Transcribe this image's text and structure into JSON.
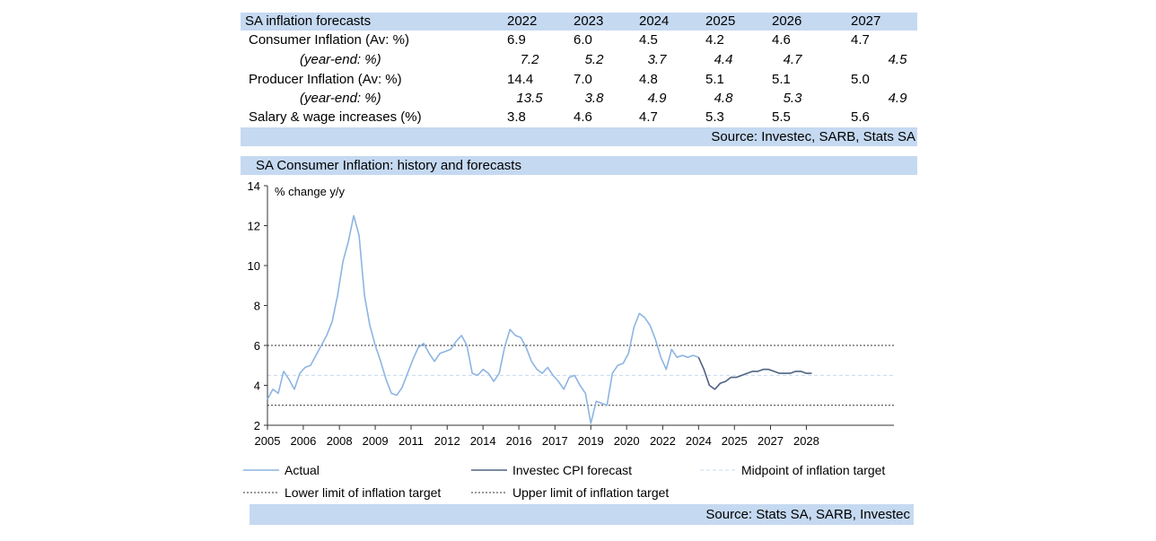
{
  "table": {
    "title": "SA inflation forecasts",
    "years": [
      "2022",
      "2023",
      "2024",
      "2025",
      "2026",
      "2027"
    ],
    "rows": [
      {
        "label": "Consumer Inflation (Av: %)",
        "italic": false,
        "values": [
          "6.9",
          "6.0",
          "4.5",
          "4.2",
          "4.6",
          "4.7"
        ]
      },
      {
        "label": "(year-end: %)",
        "italic": true,
        "values": [
          "7.2",
          "5.2",
          "3.7",
          "4.4",
          "4.7",
          "4.5"
        ]
      },
      {
        "label": "Producer Inflation (Av: %)",
        "italic": false,
        "values": [
          "14.4",
          "7.0",
          "4.8",
          "5.1",
          "5.1",
          "5.0"
        ]
      },
      {
        "label": "(year-end: %)",
        "italic": true,
        "values": [
          "13.5",
          "3.8",
          "4.9",
          "4.8",
          "5.3",
          "4.9"
        ]
      },
      {
        "label": "Salary & wage increases (%)",
        "italic": false,
        "values": [
          "3.8",
          "4.6",
          "4.7",
          "5.3",
          "5.5",
          "5.6"
        ]
      }
    ],
    "source": "Source: Investec, SARB, Stats SA"
  },
  "chart_data": {
    "type": "line",
    "title": "SA Consumer Inflation: history and forecasts",
    "ylabel": "% change y/y",
    "ylim": [
      2,
      14
    ],
    "yticks": [
      "2",
      "4",
      "6",
      "8",
      "10",
      "12",
      "14"
    ],
    "xlim": [
      2005.0,
      2028.25
    ],
    "xticks": [
      {
        "label": "2005",
        "value": 2005.0
      },
      {
        "label": "2006",
        "value": 2006.33
      },
      {
        "label": "2008",
        "value": 2007.67
      },
      {
        "label": "2009",
        "value": 2009.0
      },
      {
        "label": "2011",
        "value": 2010.33
      },
      {
        "label": "2012",
        "value": 2011.67
      },
      {
        "label": "2014",
        "value": 2013.0
      },
      {
        "label": "2016",
        "value": 2014.33
      },
      {
        "label": "2017",
        "value": 2015.67
      },
      {
        "label": "2019",
        "value": 2017.0
      },
      {
        "label": "2020",
        "value": 2018.33
      },
      {
        "label": "2022",
        "value": 2019.67
      },
      {
        "label": "2024",
        "value": 2021.0
      },
      {
        "label": "2025",
        "value": 2022.33
      },
      {
        "label": "2027",
        "value": 2023.67
      },
      {
        "label": "2028",
        "value": 2025.0
      }
    ],
    "series": [
      {
        "name": "Actual",
        "color": "#8db4e2",
        "x": [
          2005.0,
          2005.2,
          2005.4,
          2005.6,
          2005.8,
          2006.0,
          2006.2,
          2006.4,
          2006.6,
          2006.8,
          2007.0,
          2007.2,
          2007.4,
          2007.6,
          2007.8,
          2008.0,
          2008.2,
          2008.4,
          2008.6,
          2008.8,
          2009.0,
          2009.2,
          2009.4,
          2009.6,
          2009.8,
          2010.0,
          2010.2,
          2010.4,
          2010.6,
          2010.8,
          2011.0,
          2011.2,
          2011.4,
          2011.6,
          2011.8,
          2012.0,
          2012.2,
          2012.4,
          2012.6,
          2012.8,
          2013.0,
          2013.2,
          2013.4,
          2013.6,
          2013.8,
          2014.0,
          2014.2,
          2014.4,
          2014.6,
          2014.8,
          2015.0,
          2015.2,
          2015.4,
          2015.6,
          2015.8,
          2016.0,
          2016.2,
          2016.4,
          2016.6,
          2016.8,
          2017.0,
          2017.2,
          2017.4,
          2017.6,
          2017.8,
          2018.0,
          2018.2,
          2018.4,
          2018.6,
          2018.8,
          2019.0,
          2019.2,
          2019.4,
          2019.6,
          2019.8,
          2020.0,
          2020.2,
          2020.4,
          2020.6,
          2020.8,
          2021.0
        ],
        "y": [
          3.3,
          3.8,
          3.6,
          4.7,
          4.3,
          3.8,
          4.6,
          4.9,
          5.0,
          5.5,
          6.0,
          6.5,
          7.2,
          8.5,
          10.2,
          11.2,
          12.5,
          11.5,
          8.5,
          7.0,
          6.0,
          5.2,
          4.3,
          3.6,
          3.5,
          3.9,
          4.6,
          5.3,
          5.9,
          6.1,
          5.6,
          5.2,
          5.6,
          5.7,
          5.8,
          6.2,
          6.5,
          6.0,
          4.6,
          4.5,
          4.8,
          4.6,
          4.2,
          4.6,
          5.9,
          6.8,
          6.5,
          6.4,
          5.9,
          5.2,
          4.8,
          4.6,
          4.9,
          4.5,
          4.2,
          3.8,
          4.4,
          4.5,
          4.0,
          3.6,
          2.1,
          3.2,
          3.1,
          3.0,
          4.6,
          5.0,
          5.1,
          5.6,
          6.9,
          7.6,
          7.4,
          7.0,
          6.3,
          5.4,
          4.8,
          5.8,
          5.4,
          5.5,
          5.4,
          5.5,
          5.4
        ]
      },
      {
        "name": "Investec CPI forecast",
        "color": "#4f6282",
        "x": [
          2021.0,
          2021.2,
          2021.4,
          2021.6,
          2021.8,
          2022.0,
          2022.2,
          2022.4,
          2022.6,
          2022.8,
          2023.0,
          2023.2,
          2023.4,
          2023.6,
          2023.8,
          2024.0,
          2024.2,
          2024.4,
          2024.6,
          2024.8,
          2025.0,
          2025.2
        ],
        "y": [
          5.4,
          4.8,
          4.0,
          3.8,
          4.1,
          4.2,
          4.4,
          4.4,
          4.5,
          4.6,
          4.7,
          4.7,
          4.8,
          4.8,
          4.7,
          4.6,
          4.6,
          4.6,
          4.7,
          4.7,
          4.6,
          4.6
        ]
      }
    ],
    "reference_lines": [
      {
        "name": "Midpoint of inflation target",
        "value": 4.5,
        "color": "#c5d9f1",
        "style": "dashed"
      },
      {
        "name": "Lower limit of inflation target",
        "value": 3.0,
        "color": "#333333",
        "style": "dotted"
      },
      {
        "name": "Upper limit of inflation target",
        "value": 6.0,
        "color": "#333333",
        "style": "dotted"
      }
    ],
    "legend": [
      "Actual",
      "Investec CPI forecast",
      "Midpoint of inflation target",
      "Lower limit of inflation target",
      "Upper limit of inflation target"
    ],
    "source": "Source: Stats SA, SARB, Investec"
  }
}
